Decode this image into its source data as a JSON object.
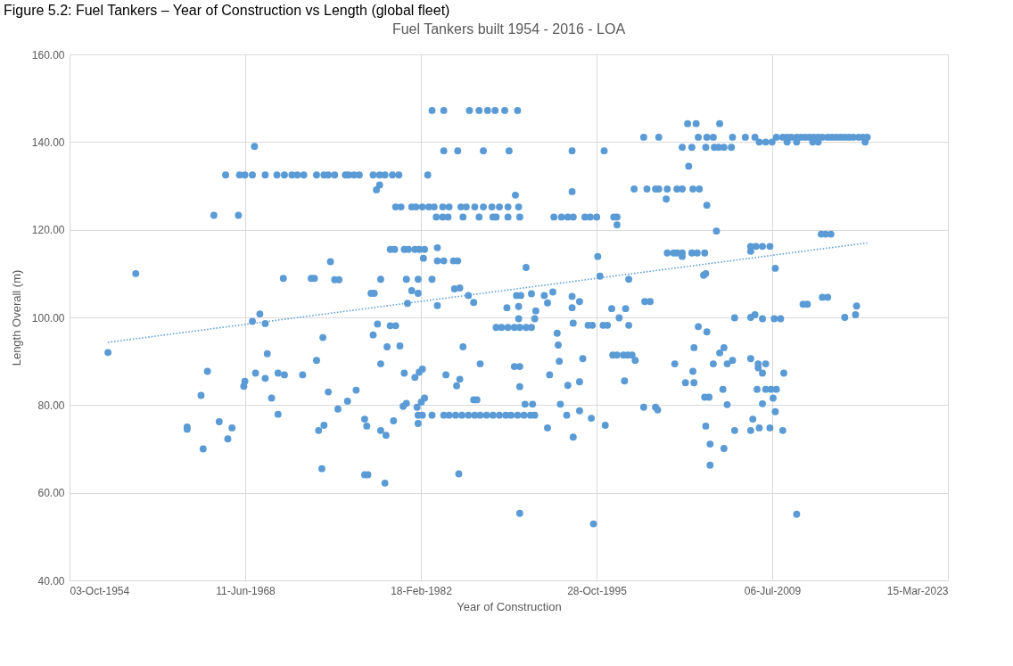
{
  "chart_data": {
    "type": "scatter",
    "title": "Fuel Tankers built 1954 - 2016  - LOA",
    "xlabel": "Year of Construction",
    "ylabel": "Length Overall (m)",
    "annotations": [
      "Figure 5.2: Fuel Tankers – Year of Construction vs Length (global fleet)"
    ],
    "grid": true,
    "xlim": [
      "1954-10-03",
      "2023-03-15"
    ],
    "xticks": [
      {
        "value": "1954-10-03",
        "label": "03-Oct-1954"
      },
      {
        "value": "1968-06-11",
        "label": "11-Jun-1968"
      },
      {
        "value": "1982-02-18",
        "label": "18-Feb-1982"
      },
      {
        "value": "1995-10-28",
        "label": "28-Oct-1995"
      },
      {
        "value": "2009-07-06",
        "label": "06-Jul-2009"
      },
      {
        "value": "2023-03-15",
        "label": "15-Mar-2023"
      }
    ],
    "ylim": [
      40,
      160
    ],
    "yticks": [
      {
        "value": 40,
        "label": "40.00"
      },
      {
        "value": 60,
        "label": "60.00"
      },
      {
        "value": 80,
        "label": "80.00"
      },
      {
        "value": 100,
        "label": "100.00"
      },
      {
        "value": 120,
        "label": "120.00"
      },
      {
        "value": 140,
        "label": "140.00"
      },
      {
        "value": 160,
        "label": "160.00"
      }
    ],
    "series": [
      {
        "color": "#5b9bd5",
        "marker": "circle",
        "x": [
          "1957-10",
          "1959-12",
          "1963-12",
          "1963-12",
          "1965-01",
          "1965-03",
          "1965-07",
          "1966-01",
          "1966-06",
          "1967-02",
          "1967-06",
          "1967-12",
          "1968-05",
          "1968-06",
          "1966-12",
          "1968-01",
          "1968-06",
          "1969-01",
          "1970-01",
          "1970-12",
          "1971-07",
          "1972-02",
          "1972-07",
          "1973-01",
          "1974-01",
          "1974-08",
          "1974-12",
          "1975-06",
          "1976-04",
          "1976-07",
          "1976-12",
          "1977-05",
          "1978-06",
          "1978-12",
          "1979-05",
          "1979-12",
          "1980-06",
          "1982-09",
          "1969-03",
          "1969-08",
          "1969-01",
          "1970-01",
          "1970-03",
          "1975-02",
          "1971-06",
          "1973-08",
          "1973-11",
          "1975-06",
          "1975-10",
          "1974-01",
          "1974-07",
          "1969-04",
          "1970-01",
          "1971-01",
          "1971-07",
          "1972-12",
          "1970-07",
          "1971-01",
          "1974-12",
          "1976-06",
          "1975-09",
          "1974-08",
          "1974-03",
          "1974-06",
          "1977-02",
          "1983-01",
          "1983-12",
          "1985-12",
          "1986-09",
          "1987-05",
          "1987-12",
          "1988-09",
          "1989-09",
          "1983-12",
          "1985-01",
          "1987-01",
          "1989-01",
          "1993-12",
          "1996-06",
          "1978-12",
          "1978-09",
          "1989-07",
          "1993-12",
          "1980-03",
          "1980-08",
          "1981-06",
          "1981-10",
          "1982-04",
          "1982-10",
          "1983-03",
          "1983-11",
          "1984-05",
          "1985-04",
          "1985-09",
          "1986-05",
          "1987-01",
          "1987-09",
          "1988-04",
          "1988-12",
          "1989-10",
          "1983-05",
          "1983-11",
          "1984-04",
          "1985-06",
          "1986-09",
          "1987-10",
          "1988-01",
          "1988-12",
          "1989-11",
          "1992-07",
          "1993-02",
          "1993-08",
          "1994-01",
          "1994-12",
          "1995-05",
          "1995-11",
          "1997-03",
          "1997-06",
          "1997-06",
          "1979-10",
          "1980-02",
          "1980-11",
          "1981-03",
          "1981-09",
          "1982-01",
          "1982-06",
          "1983-06",
          "1982-05",
          "1983-06",
          "1983-12",
          "1984-09",
          "1985-01",
          "1990-05",
          "1995-12",
          "1996-02",
          "1979-01",
          "1981-01",
          "1981-12",
          "1983-01",
          "1978-04",
          "1978-07",
          "1981-06",
          "1981-12",
          "1984-10",
          "1985-03",
          "1985-11",
          "1986-04",
          "1981-02",
          "1983-06",
          "1989-08",
          "1989-12",
          "1990-10",
          "1991-10",
          "1992-06",
          "1992-01",
          "1993-12",
          "1994-07",
          "1993-12",
          "1997-01",
          "1988-11",
          "1989-10",
          "1989-10",
          "1991-01",
          "1991-02",
          "1988-01",
          "1988-06",
          "1988-12",
          "1989-06",
          "1989-11",
          "1990-05",
          "1990-10",
          "1978-10",
          "1979-10",
          "1980-03",
          "1978-06",
          "1979-07",
          "1980-07",
          "1985-06",
          "1994-01",
          "1995-03",
          "1995-07",
          "1996-05",
          "1996-09",
          "1992-10",
          "1992-11",
          "1992-12",
          "1994-10",
          "1979-01",
          "1986-10",
          "1989-06",
          "1989-11",
          "1980-11",
          "1981-09",
          "1982-01",
          "1982-04",
          "1984-02",
          "1985-03",
          "1984-12",
          "1989-11",
          "1992-03",
          "1993-08",
          "1994-07",
          "1980-10",
          "1981-01",
          "1981-11",
          "1982-03",
          "1982-06",
          "1986-04",
          "1986-07",
          "1981-12",
          "1982-04",
          "1983-01",
          "1983-12",
          "1984-05",
          "1984-11",
          "1985-05",
          "1985-11",
          "1986-05",
          "1986-10",
          "1987-04",
          "1987-10",
          "1988-04",
          "1988-10",
          "1989-03",
          "1989-09",
          "1990-03",
          "1990-09",
          "1991-01",
          "1981-12",
          "1990-04",
          "1990-11",
          "1977-10",
          "1977-12",
          "1979-01",
          "1979-06",
          "1980-01",
          "1992-01",
          "1993-01",
          "1993-07",
          "1994-07",
          "1994-01",
          "1995-06",
          "1996-07",
          "1977-10",
          "1978-01",
          "1979-05",
          "1985-02",
          "1989-11",
          "1995-08",
          "2002-12",
          "2003-08",
          "2005-06",
          "1999-07",
          "2000-09",
          "2003-10",
          "2004-06",
          "2004-12",
          "2006-06",
          "2007-06",
          "2008-03",
          "2009-11",
          "2010-05",
          "2010-09",
          "2011-01",
          "2011-06",
          "2011-10",
          "2012-02",
          "2012-06",
          "2012-10",
          "2013-02",
          "2013-06",
          "2013-11",
          "2014-03",
          "2014-07",
          "2014-11",
          "2015-03",
          "2015-07",
          "2015-11",
          "2016-04",
          "2016-08",
          "2016-12",
          "2008-07",
          "2009-01",
          "2009-07",
          "2010-09",
          "2011-06",
          "2012-09",
          "2013-02",
          "2016-10",
          "2002-07",
          "2003-04",
          "2004-05",
          "2005-01",
          "2005-05",
          "2005-10",
          "2006-05",
          "2003-01",
          "1998-10",
          "1999-10",
          "2000-06",
          "2000-09",
          "2001-05",
          "2002-02",
          "2002-07",
          "2003-05",
          "2003-11",
          "2001-04",
          "2004-06",
          "2005-03",
          "2013-05",
          "2013-09",
          "2014-02",
          "2001-05",
          "2001-11",
          "2002-02",
          "2002-07",
          "2003-04",
          "2003-09",
          "2004-04",
          "2002-07",
          "2007-11",
          "2008-04",
          "2008-10",
          "2009-05",
          "2007-11",
          "2009-10",
          "2004-03",
          "2004-05",
          "1998-05",
          "1999-08",
          "2000-01",
          "2011-12",
          "2012-04",
          "2013-06",
          "2013-11",
          "2016-02",
          "2016-01",
          "2015-03",
          "1998-02",
          "1997-08",
          "1998-05",
          "2006-08",
          "2007-11",
          "2008-03",
          "2008-10",
          "2009-09",
          "2010-03",
          "1997-02",
          "1997-06",
          "1997-12",
          "1998-04",
          "1998-08",
          "1998-11",
          "2003-10",
          "2004-06",
          "2003-06",
          "2005-10",
          "2005-06",
          "2001-12",
          "2004-12",
          "2006-01",
          "2006-06",
          "2007-11",
          "2008-06",
          "2009-01",
          "2008-06",
          "2008-10",
          "2010-06",
          "1998-01",
          "2003-05",
          "2002-10",
          "2003-06",
          "2005-09",
          "2008-05",
          "2009-01",
          "2009-06",
          "2009-11",
          "2009-08",
          "2004-04",
          "2004-08",
          "2006-01",
          "1999-07",
          "2000-06",
          "2000-08",
          "2008-10",
          "2009-10",
          "2008-01",
          "2004-05",
          "2006-08",
          "2007-11",
          "2008-07",
          "2009-05",
          "2010-05",
          "2004-09",
          "2005-10",
          "2004-09",
          "2011-06"
        ],
        "values": [
          92.0,
          110.0,
          75.0,
          74.5,
          82.2,
          70.0,
          87.7,
          123.3,
          76.2,
          72.3,
          74.8,
          123.3,
          84.3,
          85.4,
          132.5,
          132.5,
          132.5,
          132.5,
          132.5,
          132.5,
          132.5,
          132.5,
          132.5,
          132.5,
          132.5,
          132.5,
          132.5,
          132.5,
          132.5,
          132.5,
          132.5,
          132.5,
          132.5,
          132.5,
          132.5,
          132.5,
          132.5,
          132.5,
          139.0,
          100.8,
          99.1,
          98.6,
          91.7,
          112.7,
          108.9,
          108.9,
          108.9,
          108.6,
          108.6,
          90.2,
          95.4,
          87.3,
          86.1,
          87.3,
          86.9,
          86.9,
          81.6,
          77.9,
          83.0,
          80.9,
          79.1,
          75.4,
          74.2,
          65.5,
          83.4,
          147.2,
          147.2,
          147.2,
          147.2,
          147.2,
          147.2,
          147.2,
          147.2,
          138.0,
          138.0,
          138.0,
          138.0,
          138.0,
          138.0,
          130.2,
          129.1,
          127.9,
          128.7,
          125.2,
          125.2,
          125.2,
          125.2,
          125.2,
          125.2,
          125.2,
          125.2,
          125.2,
          125.2,
          125.2,
          125.2,
          125.2,
          125.2,
          125.2,
          125.2,
          125.2,
          122.9,
          122.9,
          122.9,
          122.9,
          122.9,
          122.9,
          122.9,
          122.9,
          122.9,
          122.9,
          122.9,
          122.9,
          122.9,
          122.9,
          122.9,
          122.9,
          122.9,
          122.9,
          121.1,
          115.5,
          115.5,
          115.5,
          115.5,
          115.5,
          115.5,
          115.5,
          115.9,
          113.5,
          112.9,
          112.9,
          112.9,
          112.9,
          111.4,
          113.9,
          109.4,
          108.7,
          108.7,
          108.7,
          108.7,
          105.5,
          105.5,
          106.1,
          105.5,
          106.5,
          106.7,
          105.0,
          103.4,
          103.2,
          102.7,
          105.0,
          105.0,
          105.4,
          105.0,
          105.8,
          103.3,
          104.8,
          103.6,
          102.2,
          102.0,
          102.2,
          102.5,
          99.7,
          99.7,
          101.5,
          97.7,
          97.7,
          97.7,
          97.7,
          97.7,
          97.7,
          97.7,
          98.5,
          98.1,
          98.1,
          96.0,
          93.3,
          93.5,
          93.3,
          98.7,
          98.2,
          98.2,
          98.2,
          98.2,
          96.4,
          93.7,
          90.0,
          90.6,
          89.4,
          89.4,
          88.8,
          88.8,
          87.3,
          86.3,
          87.5,
          88.2,
          86.9,
          85.9,
          84.4,
          84.2,
          86.9,
          84.5,
          85.3,
          79.7,
          80.4,
          79.5,
          80.7,
          81.6,
          81.2,
          81.2,
          77.7,
          77.7,
          77.7,
          77.7,
          77.7,
          77.7,
          77.7,
          77.7,
          77.7,
          77.7,
          77.7,
          77.7,
          77.7,
          77.7,
          77.7,
          77.7,
          77.7,
          77.7,
          77.7,
          75.8,
          80.2,
          80.2,
          76.8,
          75.2,
          74.2,
          73.1,
          76.4,
          74.8,
          80.2,
          77.7,
          78.7,
          72.7,
          77.0,
          75.4,
          64.1,
          64.1,
          62.2,
          64.3,
          55.3,
          52.9,
          144.2,
          144.2,
          144.2,
          141.1,
          141.1,
          141.1,
          141.1,
          141.1,
          141.1,
          141.1,
          141.1,
          141.1,
          141.1,
          141.1,
          141.1,
          141.1,
          141.1,
          141.1,
          141.1,
          141.1,
          141.1,
          141.1,
          141.1,
          141.1,
          141.1,
          141.1,
          141.1,
          141.1,
          141.1,
          141.1,
          141.1,
          141.1,
          140.0,
          140.0,
          140.0,
          140.0,
          140.0,
          140.0,
          140.0,
          140.0,
          138.8,
          138.8,
          138.8,
          138.8,
          138.8,
          138.8,
          138.8,
          134.5,
          129.3,
          129.3,
          129.3,
          129.3,
          129.3,
          129.3,
          129.3,
          129.3,
          129.3,
          127.0,
          125.6,
          119.7,
          119.0,
          119.0,
          119.0,
          114.7,
          114.7,
          114.7,
          114.7,
          114.7,
          114.7,
          114.7,
          113.9,
          116.2,
          116.2,
          116.2,
          116.2,
          115.1,
          111.2,
          109.6,
          110.0,
          108.7,
          103.6,
          103.6,
          103.0,
          103.0,
          104.6,
          104.6,
          102.6,
          100.6,
          100.0,
          102.0,
          99.9,
          98.2,
          99.9,
          100.0,
          100.6,
          99.7,
          99.7,
          99.7,
          91.4,
          91.4,
          91.4,
          91.4,
          91.4,
          90.2,
          97.9,
          96.7,
          93.1,
          93.1,
          91.9,
          89.4,
          89.4,
          89.4,
          90.2,
          90.6,
          89.4,
          89.4,
          88.5,
          87.3,
          87.3,
          85.5,
          87.7,
          85.1,
          85.1,
          83.6,
          83.6,
          83.6,
          83.6,
          83.6,
          81.6,
          81.8,
          81.8,
          80.1,
          79.5,
          79.5,
          78.9,
          80.3,
          78.5,
          76.8,
          75.2,
          74.2,
          74.2,
          74.8,
          74.8,
          74.2,
          71.1,
          70.1,
          66.3,
          55.1
        ]
      },
      {
        "type": "line",
        "color": "#5b9bd5",
        "line_style": "dotted",
        "marker": "none",
        "x": [
          "1957-10",
          "2016-12"
        ],
        "values": [
          94.3,
          117.0
        ]
      }
    ]
  }
}
